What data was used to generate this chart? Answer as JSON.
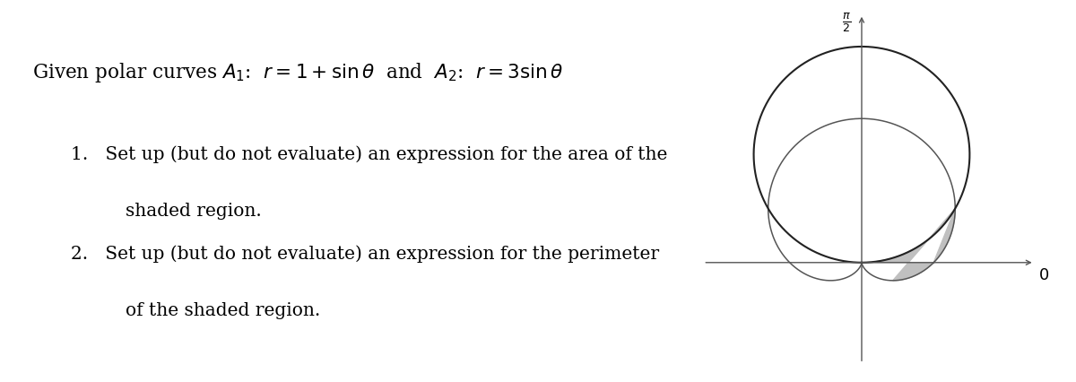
{
  "background_color": "#ffffff",
  "text_color": "#000000",
  "curve_color_A1": "#555555",
  "curve_color_A2": "#222222",
  "shaded_color": "#c0c0c0",
  "axis_color": "#555555",
  "title_text": "Given polar curves $A_1$:  $r = 1 + \\sin \\theta$  and  $A_2$:  $r = 3 \\sin \\theta$",
  "item1_line1": "Set up (but do not evaluate) an expression for the area of the",
  "item1_line2": "shaded region.",
  "item2_line1": "Set up (but do not evaluate) an expression for the perimeter",
  "item2_line2": "of the shaded region.",
  "axis_label_pi2_num": "$\\pi$",
  "axis_label_pi2_den": "$2$",
  "axis_label_0": "$0$",
  "text_fontsize": 15.5,
  "item_fontsize": 14.5,
  "label_fontsize": 13.0
}
